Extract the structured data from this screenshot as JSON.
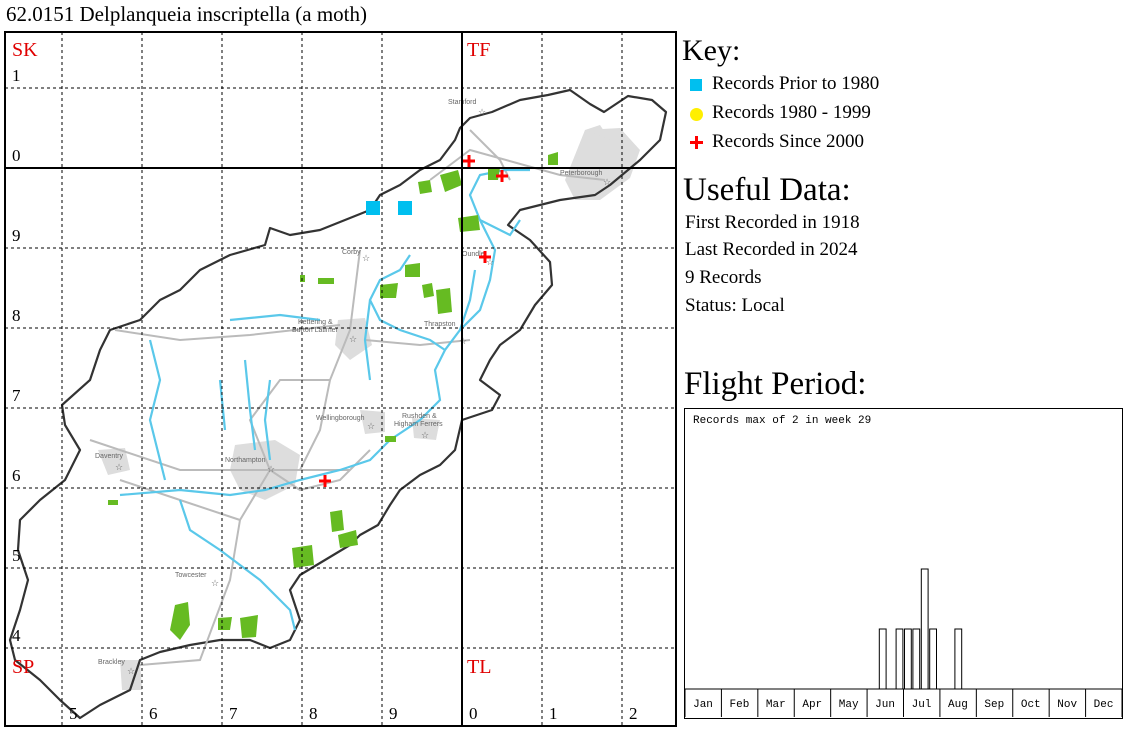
{
  "title": "62.0151 Delplanqueia inscriptella (a moth)",
  "map": {
    "squares": [
      "SK",
      "TF",
      "SP",
      "TL"
    ],
    "row_labels": [
      "1",
      "0",
      "9",
      "8",
      "7",
      "6",
      "5",
      "4"
    ],
    "col_labels": [
      "5",
      "6",
      "7",
      "8",
      "9",
      "0",
      "1",
      "2"
    ],
    "towns": [
      "Stamford",
      "Peterborough",
      "Corby",
      "Oundle",
      "Kettering &",
      "Burton Latimer",
      "Thrapston",
      "Wellingborough",
      "Rushden &",
      "Higham Ferrers",
      "Daventry",
      "Northampton",
      "Towcester",
      "Brackley"
    ],
    "colors": {
      "prior_1980": "#00BFEF",
      "r1980_1999": "#FFEF00",
      "since_2000": "#FF0000",
      "grid_label": "#E00000",
      "river": "#5AC8EA",
      "woodland": "#66BB22"
    }
  },
  "key": {
    "title": "Key:",
    "items": [
      {
        "label": "Records Prior to 1980",
        "symbol": "square-icon"
      },
      {
        "label": "Records 1980 - 1999",
        "symbol": "circle-icon"
      },
      {
        "label": "Records Since 2000",
        "symbol": "cross-icon"
      }
    ]
  },
  "useful": {
    "title": "Useful Data:",
    "first": "First Recorded in 1918",
    "last": "Last Recorded in 2024",
    "count": "9 Records",
    "status": "Status: Local"
  },
  "flight": {
    "title": "Flight Period:",
    "note": "Records max of 2 in week 29"
  },
  "chart_data": {
    "type": "bar",
    "title": "Flight Period:",
    "annotation": "Records max of 2 in week 29",
    "x_unit": "week",
    "months": [
      "Jan",
      "Feb",
      "Mar",
      "Apr",
      "May",
      "Jun",
      "Jul",
      "Aug",
      "Sep",
      "Oct",
      "Nov",
      "Dec"
    ],
    "ylim": [
      0,
      2
    ],
    "points": [
      {
        "week": 24,
        "value": 1
      },
      {
        "week": 26,
        "value": 1
      },
      {
        "week": 27,
        "value": 1
      },
      {
        "week": 28,
        "value": 1
      },
      {
        "week": 29,
        "value": 2
      },
      {
        "week": 30,
        "value": 1
      },
      {
        "week": 33,
        "value": 1
      }
    ]
  }
}
